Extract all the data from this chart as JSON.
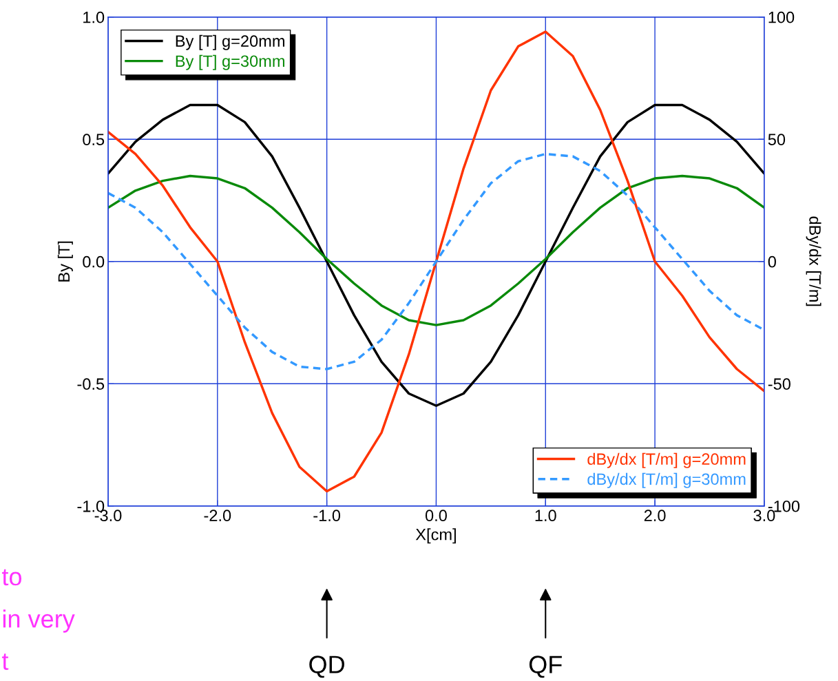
{
  "chart_data": {
    "type": "line",
    "xlabel": "X[cm]",
    "ylabel": "By [T]",
    "y2label": "dBy/dx [T/m]",
    "xlim": [
      -3.0,
      3.0
    ],
    "xticks": [
      {
        "value": -3,
        "label": "-3.0"
      },
      {
        "value": -2,
        "label": "-2.0"
      },
      {
        "value": -1,
        "label": "-1.0"
      },
      {
        "value": 0,
        "label": "0.0"
      },
      {
        "value": 1,
        "label": "1.0"
      },
      {
        "value": 2,
        "label": "2.0"
      },
      {
        "value": 3,
        "label": "3.0"
      }
    ],
    "ylim": [
      -1.0,
      1.0
    ],
    "yticks": [
      {
        "value": -1,
        "label": "-1.0"
      },
      -0.5,
      {
        "value": 0,
        "label": "0.0"
      },
      0.5,
      {
        "value": 1,
        "label": "1.0"
      }
    ],
    "y2lim": [
      -100,
      100
    ],
    "y2ticks": [
      -100,
      -50,
      0,
      50,
      100
    ],
    "grid": true,
    "legend": "top left",
    "marker": "none",
    "x": [
      -3.0,
      -2.75,
      -2.5,
      -2.25,
      -2.0,
      -1.75,
      -1.5,
      -1.25,
      -1.0,
      -0.75,
      -0.5,
      -0.25,
      0.0,
      0.25,
      0.5,
      0.75,
      1.0,
      1.25,
      1.5,
      1.75,
      2.0,
      2.25,
      2.5,
      2.75,
      3.0
    ],
    "series": [
      {
        "name": "By [T] g=20mm",
        "color": "#000000",
        "values": [
          0.36,
          0.49,
          0.58,
          0.64,
          0.64,
          0.57,
          0.43,
          0.22,
          0.0,
          -0.22,
          -0.41,
          -0.54,
          -0.59,
          -0.54,
          -0.41,
          -0.22,
          0.0,
          0.22,
          0.43,
          0.57,
          0.64,
          0.64,
          0.58,
          0.49,
          0.36
        ]
      },
      {
        "name": "By [T] g=30mm",
        "color": "#0a8a0a",
        "values": [
          0.22,
          0.29,
          0.33,
          0.35,
          0.34,
          0.3,
          0.22,
          0.12,
          0.01,
          -0.09,
          -0.18,
          -0.24,
          -0.26,
          -0.24,
          -0.18,
          -0.09,
          0.01,
          0.12,
          0.22,
          0.3,
          0.34,
          0.35,
          0.34,
          0.3,
          0.22
        ]
      },
      {
        "name": "dBy/dx [T/m] g=20mm",
        "color": "#ff3300",
        "axis": "y2",
        "line_style": "solid",
        "values": [
          53,
          44,
          31,
          14,
          0,
          -33,
          -62,
          -84,
          -94,
          -88,
          -70,
          -38,
          0,
          38,
          70,
          88,
          94,
          84,
          62,
          33,
          0,
          -14,
          -31,
          -44,
          -53
        ]
      },
      {
        "name": "dBy/dx [T/m] g=30mm",
        "color": "#3399ff",
        "axis": "y2",
        "line_style": "dashed",
        "values": [
          28,
          22,
          12,
          -1,
          -14,
          -27,
          -37,
          -43,
          -44,
          -41,
          -32,
          -17,
          0,
          17,
          32,
          41,
          44,
          43,
          37,
          27,
          14,
          1,
          -12,
          -22,
          -28
        ]
      }
    ],
    "annotations": [
      "QD",
      "QF",
      "to",
      "in very",
      "t"
    ]
  }
}
